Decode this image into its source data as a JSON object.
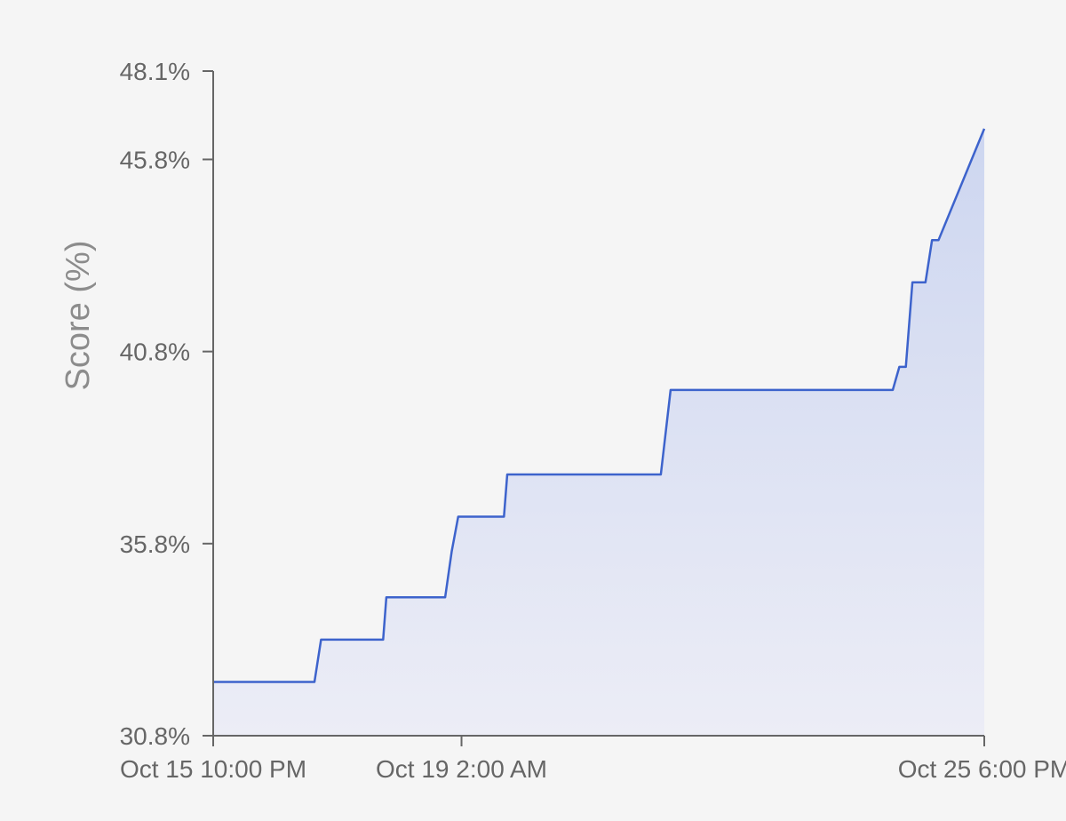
{
  "chart_data": {
    "type": "area",
    "title": "",
    "xlabel": "",
    "ylabel": "Score (%)",
    "y_ticks": [
      "48.1%",
      "45.8%",
      "40.8%",
      "35.8%",
      "30.8%"
    ],
    "y_tick_values": [
      48.1,
      45.8,
      40.8,
      35.8,
      30.8
    ],
    "ylim": [
      30.8,
      48.1
    ],
    "x_ticks": [
      "Oct 15 10:00 PM",
      "Oct 19 2:00 AM",
      "Oct 25 6:00 PM"
    ],
    "x_tick_values": [
      "Oct 15 10:00 PM",
      "Oct 19 2:00 AM",
      "Oct 25 6:00 PM"
    ],
    "xlim": [
      "Oct 15 10:00 PM",
      "Oct 25 6:00 PM"
    ],
    "grid": false,
    "colors": {
      "line": "#3d63cc",
      "fill_top": "#cdd6f0",
      "fill_bottom": "#ecedf6",
      "axis": "#666666"
    },
    "series": [
      {
        "x": [
          "Oct 15 10:00 PM",
          "Oct 17 5:00 AM",
          "Oct 17 7:00 AM",
          "Oct 18 2:00 AM",
          "Oct 18 3:00 AM",
          "Oct 18 9:00 PM",
          "Oct 18 11:00 PM",
          "Oct 19 1:00 AM",
          "Oct 19 3:00 PM",
          "Oct 19 4:00 PM",
          "Oct 21 3:00 PM",
          "Oct 21 6:00 PM",
          "Oct 24 2:00 PM",
          "Oct 24 4:00 PM",
          "Oct 24 6:00 PM",
          "Oct 24 8:00 PM",
          "Oct 25 12:00 AM",
          "Oct 25 2:00 AM",
          "Oct 25 4:00 AM",
          "Oct 25 6:00 PM"
        ],
        "y": [
          32.2,
          32.2,
          33.3,
          33.3,
          34.4,
          34.4,
          35.6,
          36.5,
          36.5,
          37.6,
          37.6,
          39.8,
          39.8,
          40.4,
          40.4,
          42.6,
          42.6,
          43.7,
          43.7,
          46.6
        ]
      }
    ]
  }
}
